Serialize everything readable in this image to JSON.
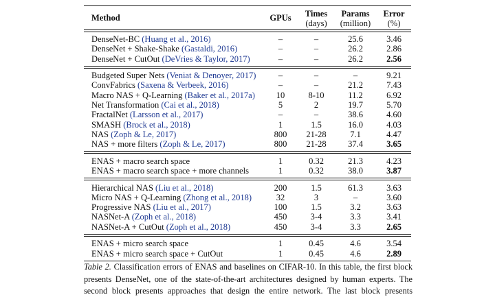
{
  "table": {
    "header": [
      {
        "label": "Method"
      },
      {
        "label": "GPUs"
      },
      {
        "label": "Times",
        "unit": "(days)"
      },
      {
        "label": "Params",
        "unit": "(million)"
      },
      {
        "label": "Error",
        "unit": "(%)"
      }
    ],
    "blocks": [
      {
        "rows": [
          {
            "method": "DenseNet-BC",
            "cite": "(Huang et al., 2016)",
            "gpus": "–",
            "times": "–",
            "params": "25.6",
            "error": "3.46"
          },
          {
            "method": "DenseNet + Shake-Shake",
            "cite": "(Gastaldi, 2016)",
            "gpus": "–",
            "times": "–",
            "params": "26.2",
            "error": "2.86"
          },
          {
            "method": "DenseNet + CutOut",
            "cite": "(DeVries & Taylor, 2017)",
            "gpus": "–",
            "times": "–",
            "params": "26.2",
            "error": "2.56",
            "bold": true
          }
        ]
      },
      {
        "rows": [
          {
            "method": "Budgeted Super Nets",
            "cite": "(Veniat & Denoyer, 2017)",
            "gpus": "–",
            "times": "–",
            "params": "–",
            "error": "9.21"
          },
          {
            "method": "ConvFabrics",
            "cite": "(Saxena & Verbeek, 2016)",
            "gpus": "–",
            "times": "–",
            "params": "21.2",
            "error": "7.43"
          },
          {
            "method": "Macro NAS + Q-Learning",
            "cite": "(Baker et al., 2017a)",
            "gpus": "10",
            "times": "8-10",
            "params": "11.2",
            "error": "6.92"
          },
          {
            "method": "Net Transformation",
            "cite": "(Cai et al., 2018)",
            "gpus": "5",
            "times": "2",
            "params": "19.7",
            "error": "5.70"
          },
          {
            "method": "FractalNet",
            "cite": "(Larsson et al., 2017)",
            "gpus": "–",
            "times": "–",
            "params": "38.6",
            "error": "4.60"
          },
          {
            "method": "SMASH",
            "cite": "(Brock et al., 2018)",
            "gpus": "1",
            "times": "1.5",
            "params": "16.0",
            "error": "4.03"
          },
          {
            "method": "NAS",
            "cite": "(Zoph & Le, 2017)",
            "gpus": "800",
            "times": "21-28",
            "params": "7.1",
            "error": "4.47"
          },
          {
            "method": "NAS + more filters",
            "cite": "(Zoph & Le, 2017)",
            "gpus": "800",
            "times": "21-28",
            "params": "37.4",
            "error": "3.65",
            "bold": true
          }
        ]
      },
      {
        "rows": [
          {
            "method": "ENAS + macro search space",
            "gpus": "1",
            "times": "0.32",
            "params": "21.3",
            "error": "4.23"
          },
          {
            "method": "ENAS + macro search space + more channels",
            "gpus": "1",
            "times": "0.32",
            "params": "38.0",
            "error": "3.87",
            "bold": true
          }
        ]
      },
      {
        "rows": [
          {
            "method": "Hierarchical NAS",
            "cite": "(Liu et al., 2018)",
            "gpus": "200",
            "times": "1.5",
            "params": "61.3",
            "error": "3.63"
          },
          {
            "method": "Micro NAS + Q-Learning",
            "cite": "(Zhong et al., 2018)",
            "gpus": "32",
            "times": "3",
            "params": "–",
            "error": "3.60"
          },
          {
            "method": "Progressive NAS",
            "cite": "(Liu et al., 2017)",
            "gpus": "100",
            "times": "1.5",
            "params": "3.2",
            "error": "3.63"
          },
          {
            "method": "NASNet-A",
            "cite": "(Zoph et al., 2018)",
            "gpus": "450",
            "times": "3-4",
            "params": "3.3",
            "error": "3.41"
          },
          {
            "method": "NASNet-A + CutOut",
            "cite": "(Zoph et al., 2018)",
            "gpus": "450",
            "times": "3-4",
            "params": "3.3",
            "error": "2.65",
            "bold": true
          }
        ]
      },
      {
        "rows": [
          {
            "method": "ENAS + micro search space",
            "gpus": "1",
            "times": "0.45",
            "params": "4.6",
            "error": "3.54"
          },
          {
            "method": "ENAS + micro search space + CutOut",
            "gpus": "1",
            "times": "0.45",
            "params": "4.6",
            "error": "2.89",
            "bold": true
          }
        ]
      }
    ]
  },
  "caption": {
    "label": "Table 2.",
    "text": "Classification errors of ENAS and baselines on CIFAR-10. In this table, the first block presents DenseNet, one of the state-of-the-art architectures designed by human experts. The second block presents approaches that design the entire network. The last block presents techniques that design modular cells which are combined to build the final network."
  }
}
